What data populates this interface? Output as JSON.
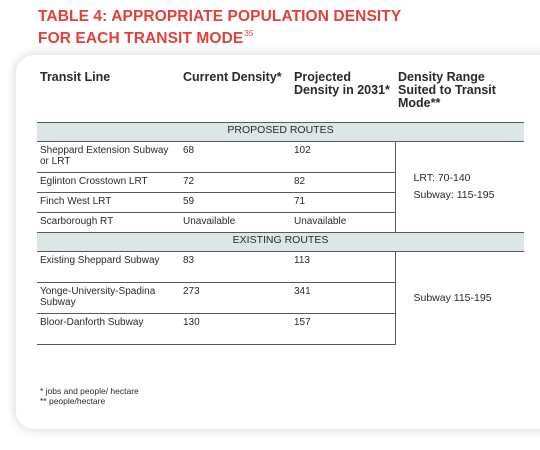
{
  "title": {
    "line1": "TABLE 4: APPROPRIATE POPULATION DENSITY",
    "line2": "FOR EACH TRANSIT MODE",
    "footnote_ref": "35"
  },
  "table": {
    "headers": [
      "Transit Line",
      "Current Density*",
      "Projected Density in 2031*",
      "Density Range Suited to Transit Mode**"
    ],
    "sections": [
      {
        "label": "PROPOSED ROUTES",
        "range_lines": [
          "LRT: 70-140",
          "Subway: 115-195"
        ],
        "rows": [
          [
            "Sheppard Extension Subway or LRT",
            "68",
            "102"
          ],
          [
            "Eglinton Crosstown LRT",
            "72",
            "82"
          ],
          [
            "Finch West LRT",
            "59",
            "71"
          ],
          [
            "Scarborough RT",
            "Unavailable",
            "Unavailable"
          ]
        ]
      },
      {
        "label": "EXISTING ROUTES",
        "range_lines": [
          "Subway 115-195"
        ],
        "rows": [
          [
            "Existing Sheppard Subway",
            "83",
            "113"
          ],
          [
            "Yonge-University-Spadina Subway",
            "273",
            "341"
          ],
          [
            "Bloor-Danforth Subway",
            "130",
            "157"
          ]
        ]
      }
    ]
  },
  "notes": [
    "* jobs and people/ hectare",
    "** people/hectare"
  ],
  "colors": {
    "title": "#e2403a",
    "section_band": "#dde6e7"
  }
}
